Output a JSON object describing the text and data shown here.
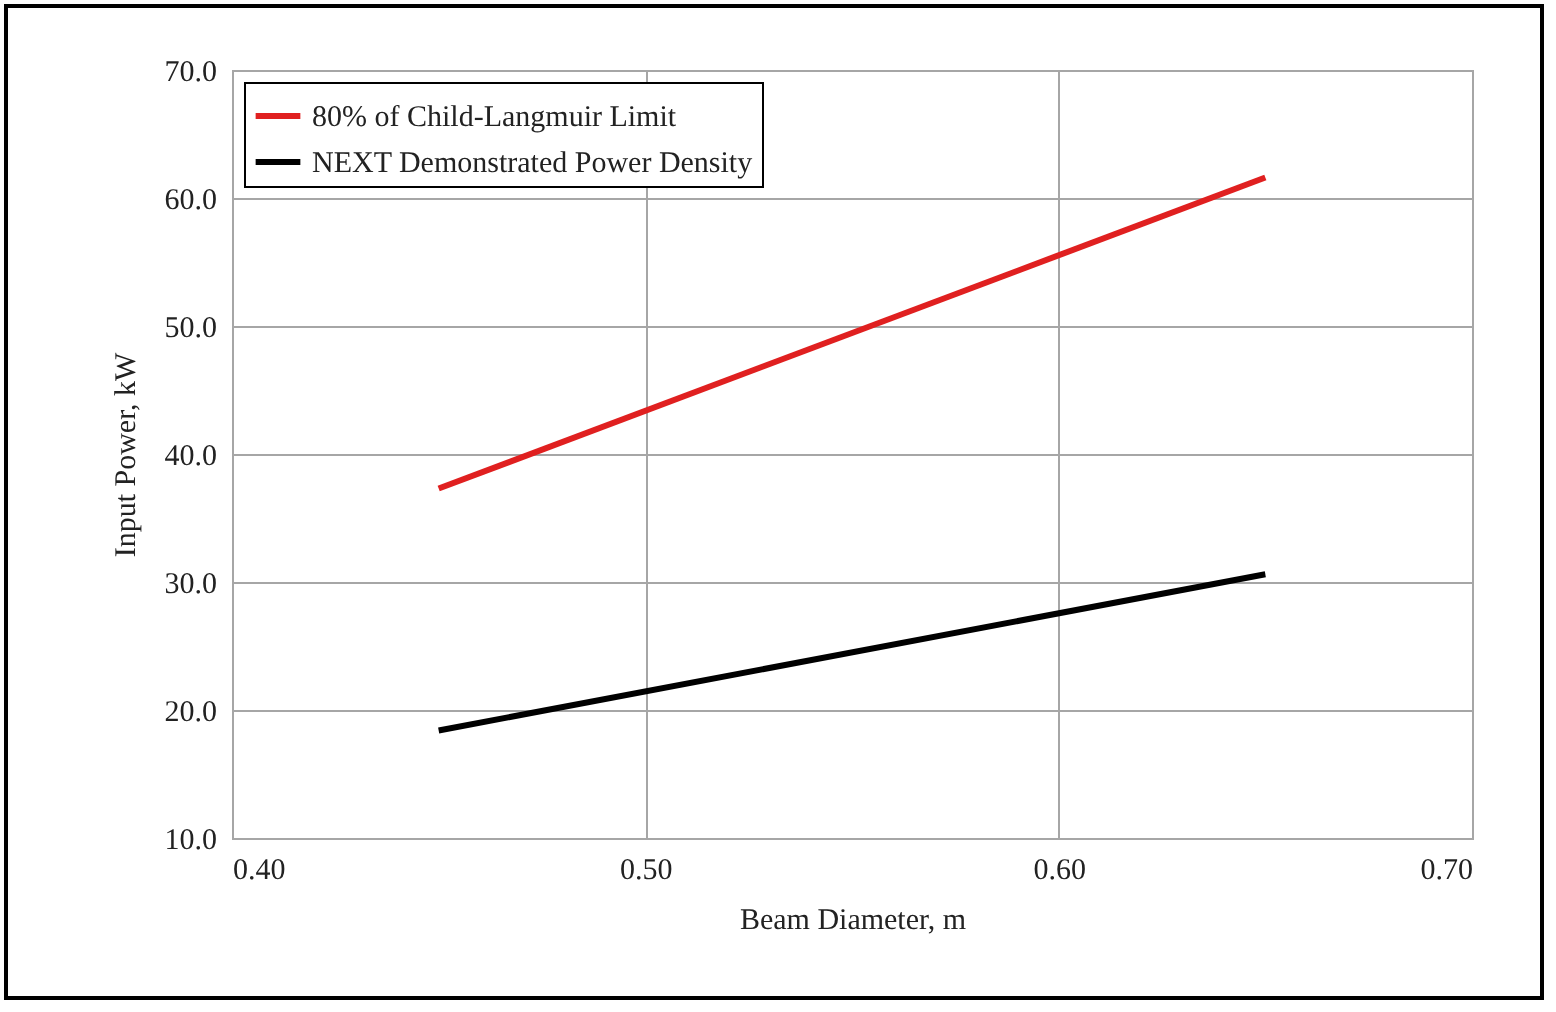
{
  "chart_data": {
    "type": "line",
    "xlabel": "Beam Diameter, m",
    "ylabel": "Input Power, kW",
    "x": [
      0.45,
      0.65
    ],
    "series": [
      {
        "name": "80% of Child-Langmuir Limit",
        "color": "#e02020",
        "values": [
          37.3,
          61.6
        ]
      },
      {
        "name": "NEXT Demonstrated Power Density",
        "color": "#000000",
        "values": [
          18.4,
          30.6
        ]
      }
    ],
    "xlim": [
      0.4,
      0.7
    ],
    "xticks": [
      {
        "value": 0.4,
        "label": "0.40"
      },
      {
        "value": 0.5,
        "label": "0.50"
      },
      {
        "value": 0.6,
        "label": "0.60"
      },
      {
        "value": 0.7,
        "label": "0.70"
      }
    ],
    "ylim": [
      10,
      70
    ],
    "yticks": [
      {
        "value": 10,
        "label": "10.0"
      },
      {
        "value": 20,
        "label": "20.0"
      },
      {
        "value": 30,
        "label": "30.0"
      },
      {
        "value": 40,
        "label": "40.0"
      },
      {
        "value": 50,
        "label": "50.0"
      },
      {
        "value": 60,
        "label": "60.0"
      },
      {
        "value": 70,
        "label": "70.0"
      }
    ],
    "grid": true,
    "legend": "top left",
    "marker": "none",
    "line_style": "solid"
  }
}
